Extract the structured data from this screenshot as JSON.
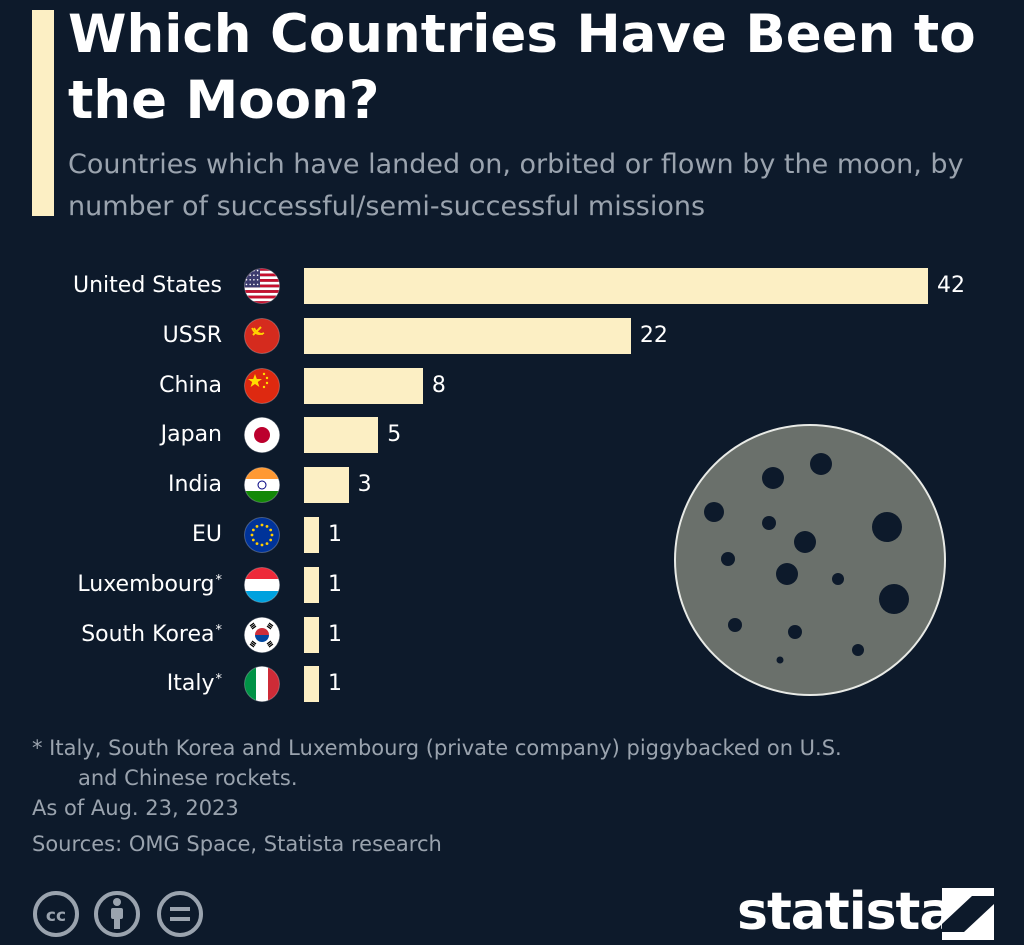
{
  "header": {
    "title": "Which Countries Have Been to the Moon?",
    "subtitle": "Countries which have landed on, orbited or flown by the moon, by number of successful/semi-successful missions"
  },
  "chart_data": {
    "type": "bar",
    "orientation": "horizontal",
    "title": "Which Countries Have Been to the Moon?",
    "subtitle": "Countries which have landed on, orbited or flown by the moon, by number of successful/semi-successful missions",
    "categories": [
      "United States",
      "USSR",
      "China",
      "Japan",
      "India",
      "EU",
      "Luxembourg",
      "South Korea",
      "Italy"
    ],
    "asterisk": [
      false,
      false,
      false,
      false,
      false,
      false,
      true,
      true,
      true
    ],
    "values": [
      42,
      22,
      8,
      5,
      3,
      1,
      1,
      1,
      1
    ],
    "flag_icons": [
      "us-flag-icon",
      "ussr-flag-icon",
      "china-flag-icon",
      "japan-flag-icon",
      "india-flag-icon",
      "eu-flag-icon",
      "luxembourg-flag-icon",
      "south-korea-flag-icon",
      "italy-flag-icon"
    ],
    "xlim": [
      0,
      42
    ],
    "bar_color": "#fcefc4",
    "grid": false,
    "legend": "none"
  },
  "footer": {
    "note_line1": "* Italy, South Korea and Luxembourg (private company) piggybacked on U.S.",
    "note_line2": "and Chinese rockets.",
    "as_of": "As of Aug. 23, 2023",
    "sources": "Sources: OMG Space, Statista research",
    "brand": "statista",
    "license_icons": [
      "cc-icon",
      "attribution-icon",
      "no-derivatives-icon"
    ]
  },
  "colors": {
    "background": "#0d1a2b",
    "accent": "#fcefc4",
    "muted_text": "#9aa3ae",
    "moon": "#6a706b"
  }
}
